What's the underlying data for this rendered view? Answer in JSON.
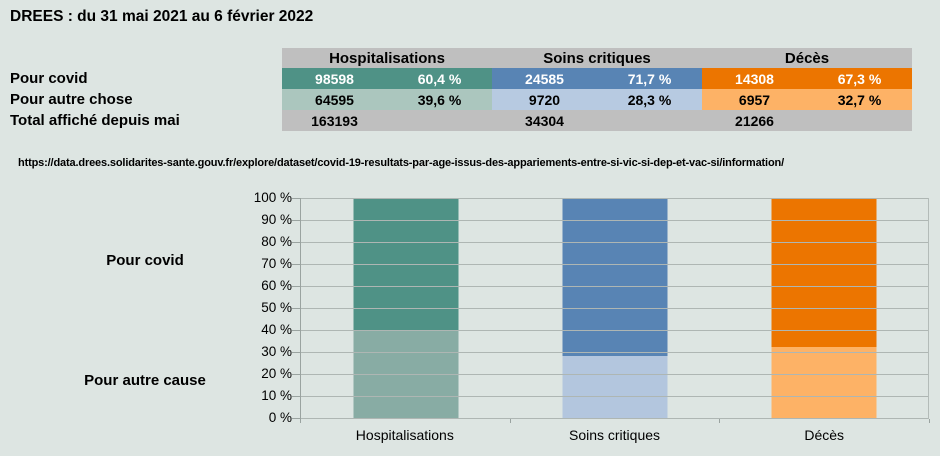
{
  "title": "DREES : du 31 mai 2021 au 6 février 2022",
  "source_url": "https://data.drees.solidarites-sante.gouv.fr/explore/dataset/covid-19-resultats-par-age-issus-des-appariements-entre-si-vic-si-dep-et-vac-si/information/",
  "table": {
    "row_labels": [
      "Pour covid",
      "Pour autre chose",
      "Total affiché depuis mai"
    ],
    "columns": [
      {
        "header": "Hospitalisations",
        "covid_value": "98598",
        "covid_pct": "60,4 %",
        "autre_value": "64595",
        "autre_pct": "39,6 %",
        "total": "163193"
      },
      {
        "header": "Soins critiques",
        "covid_value": "24585",
        "covid_pct": "71,7 %",
        "autre_value": "9720",
        "autre_pct": "28,3 %",
        "total": "34304"
      },
      {
        "header": "Décès",
        "covid_value": "14308",
        "covid_pct": "67,3 %",
        "autre_value": "6957",
        "autre_pct": "32,7 %",
        "total": "21266"
      }
    ]
  },
  "chart_data": {
    "type": "bar",
    "subtype": "100-percent-stacked-column",
    "title": "",
    "categories": [
      "Hospitalisations",
      "Soins critiques",
      "Décès"
    ],
    "series": [
      {
        "name": "Pour covid",
        "values": [
          60.4,
          71.7,
          67.3
        ],
        "colors": [
          "#4f9286",
          "#5884b4",
          "#ec7500"
        ]
      },
      {
        "name": "Pour autre cause",
        "values": [
          39.6,
          28.3,
          32.7
        ],
        "colors": [
          "#88aca4",
          "#b3c6de",
          "#fdb266"
        ]
      }
    ],
    "ylim": [
      0,
      100
    ],
    "ytick_step": 10,
    "ytick_suffix": " %",
    "grid": true,
    "legend": "none"
  },
  "colors": {
    "background": "#dde5e2",
    "table_gray": "#bfbfbf",
    "teal_dark": "#4f9286",
    "teal_light_table": "#abc6be",
    "teal_light_bar": "#88aca4",
    "blue_dark": "#5884b4",
    "blue_light_table": "#b7cae1",
    "blue_light_bar": "#b3c6de",
    "orange_dark": "#ec7500",
    "orange_light": "#fdb266",
    "gridline": "#aeb6b3",
    "text": "#000000"
  }
}
